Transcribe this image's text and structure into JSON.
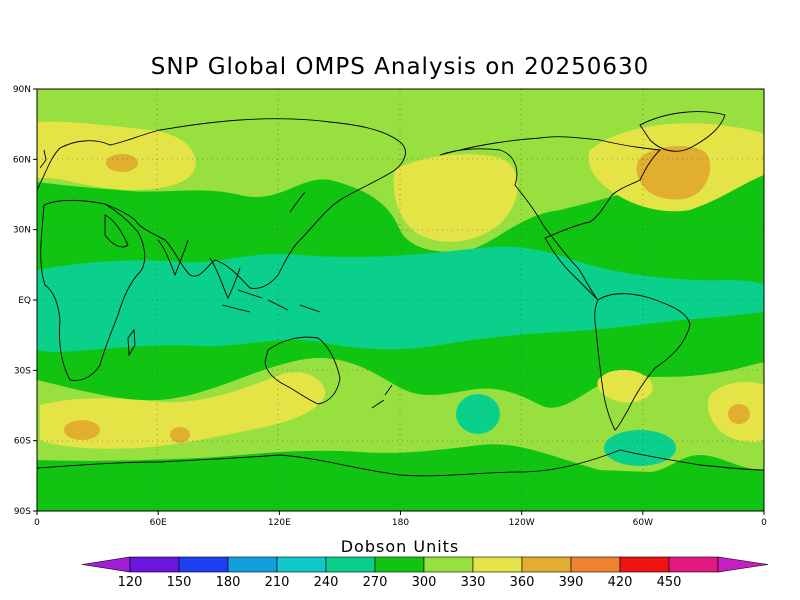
{
  "title": "SNP Global OMPS Analysis on 20250630",
  "map": {
    "lat_ticks": [
      "90N",
      "60N",
      "30N",
      "EQ",
      "30S",
      "60S",
      "90S"
    ],
    "lon_ticks": [
      "0",
      "60E",
      "120E",
      "180",
      "120W",
      "60W",
      "0"
    ],
    "grid": "dotted"
  },
  "colorbar": {
    "title": "Dobson Units",
    "levels": [
      120,
      150,
      180,
      210,
      240,
      270,
      300,
      330,
      360,
      390,
      420,
      450
    ],
    "colors": [
      "#a01ed8",
      "#6a16e0",
      "#1e3ef0",
      "#12a0dc",
      "#10c8c8",
      "#0ad08c",
      "#12c412",
      "#98e040",
      "#e4e446",
      "#e2ae30",
      "#ee8230",
      "#ee1414",
      "#e01a80",
      "#c41ec4"
    ]
  }
}
